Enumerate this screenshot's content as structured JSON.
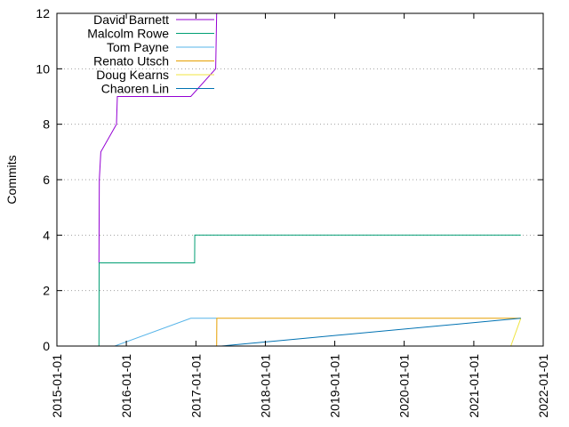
{
  "chart_data": {
    "type": "line",
    "title": "",
    "xlabel": "",
    "ylabel": "Commits",
    "ylim": [
      0,
      12
    ],
    "xlim": [
      "2015-01-01",
      "2022-01-01"
    ],
    "y_ticks": [
      "0",
      "2",
      "4",
      "6",
      "8",
      "10",
      "12"
    ],
    "x_ticks": [
      "2015-01-01",
      "2016-01-01",
      "2017-01-01",
      "2018-01-01",
      "2019-01-01",
      "2020-01-01",
      "2021-01-01",
      "2022-01-01"
    ],
    "grid": "horizontal dotted",
    "legend_position": "top-left",
    "series": [
      {
        "name": "David Barnett",
        "color": "#9400d3",
        "points": [
          [
            "2015-08-10",
            3
          ],
          [
            "2015-08-12",
            6
          ],
          [
            "2015-08-20",
            7
          ],
          [
            "2015-11-10",
            8
          ],
          [
            "2015-11-15",
            9
          ],
          [
            "2016-12-05",
            9
          ],
          [
            "2017-04-15",
            10
          ],
          [
            "2017-04-20",
            12
          ]
        ]
      },
      {
        "name": "Malcolm Rowe",
        "color": "#009e73",
        "points": [
          [
            "2015-08-10",
            0
          ],
          [
            "2015-08-11",
            3
          ],
          [
            "2016-12-25",
            3
          ],
          [
            "2016-12-26",
            4
          ],
          [
            "2021-09-05",
            4
          ]
        ]
      },
      {
        "name": "Tom Payne",
        "color": "#56b4e9",
        "points": [
          [
            "2015-11-01",
            0
          ],
          [
            "2016-12-05",
            1
          ],
          [
            "2017-04-20",
            1
          ]
        ]
      },
      {
        "name": "Renato Utsch",
        "color": "#e69f00",
        "points": [
          [
            "2017-04-20",
            0
          ],
          [
            "2017-04-21",
            1
          ],
          [
            "2021-09-05",
            1
          ]
        ]
      },
      {
        "name": "Doug Kearns",
        "color": "#f0e442",
        "points": [
          [
            "2021-07-15",
            0
          ],
          [
            "2021-09-05",
            1
          ]
        ]
      },
      {
        "name": "Chaoren Lin",
        "color": "#0072b2",
        "points": [
          [
            "2017-05-15",
            0
          ],
          [
            "2021-09-05",
            1
          ]
        ]
      }
    ]
  }
}
